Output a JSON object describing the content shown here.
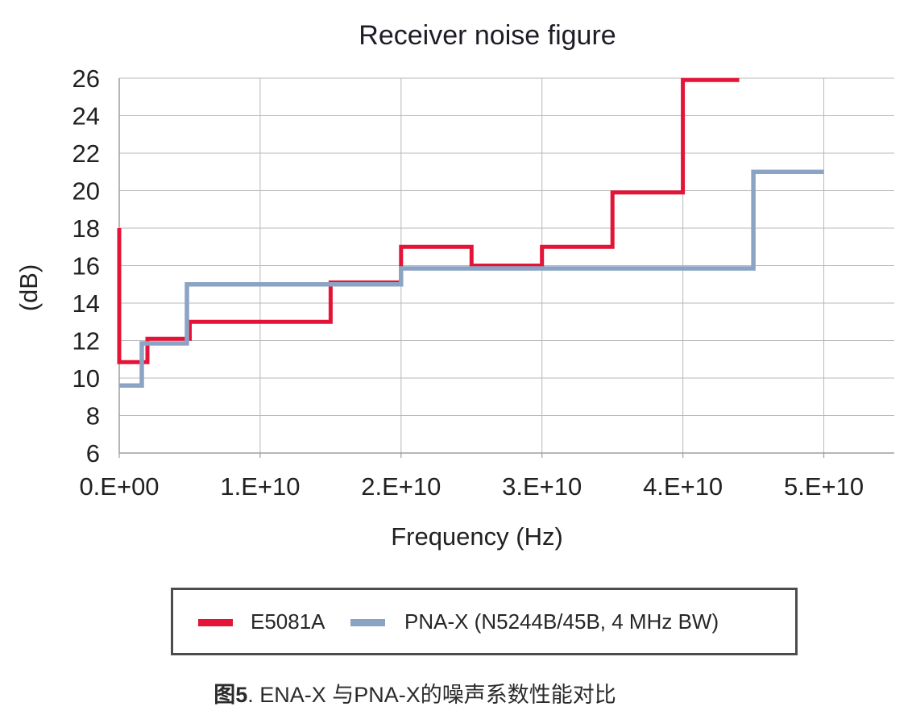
{
  "chart_data": {
    "type": "line",
    "line_style": "step",
    "title": "Receiver noise figure",
    "xlabel": "Frequency (Hz)",
    "ylabel": "(dB)",
    "xlim": [
      0,
      55000000000.0
    ],
    "ylim": [
      6,
      26
    ],
    "x_ticks": [
      0,
      10000000000.0,
      20000000000.0,
      30000000000.0,
      40000000000.0,
      50000000000.0
    ],
    "x_tick_labels": [
      "0.E+00",
      "1.E+10",
      "2.E+10",
      "3.E+10",
      "4.E+10",
      "5.E+10"
    ],
    "y_ticks": [
      6,
      8,
      10,
      12,
      14,
      16,
      18,
      20,
      22,
      24,
      26
    ],
    "grid": true,
    "legend_position": "bottom",
    "colors": {
      "grid": "#b8b8b8",
      "axis": "#9e9e9e",
      "text": "#212121"
    },
    "series": [
      {
        "name": "E5081A",
        "color": "#e31437",
        "points": [
          [
            0,
            18
          ],
          [
            0,
            10.85
          ],
          [
            2000000000.0,
            10.85
          ],
          [
            2000000000.0,
            12.1
          ],
          [
            5000000000.0,
            12.1
          ],
          [
            5000000000.0,
            13
          ],
          [
            15000000000.0,
            13
          ],
          [
            15000000000.0,
            15.1
          ],
          [
            20000000000.0,
            15.1
          ],
          [
            20000000000.0,
            17
          ],
          [
            25000000000.0,
            17
          ],
          [
            25000000000.0,
            16
          ],
          [
            30000000000.0,
            16
          ],
          [
            30000000000.0,
            17
          ],
          [
            35000000000.0,
            17
          ],
          [
            35000000000.0,
            19.9
          ],
          [
            40000000000.0,
            19.9
          ],
          [
            40000000000.0,
            25.9
          ],
          [
            44000000000.0,
            25.9
          ]
        ]
      },
      {
        "name": "PNA-X (N5244B/45B, 4 MHz BW)",
        "color": "#8ca4c4",
        "points": [
          [
            0,
            9.6
          ],
          [
            1600000000.0,
            9.6
          ],
          [
            1600000000.0,
            11.85
          ],
          [
            4800000000.0,
            11.85
          ],
          [
            4800000000.0,
            15
          ],
          [
            20000000000.0,
            15
          ],
          [
            20000000000.0,
            15.85
          ],
          [
            45000000000.0,
            15.85
          ],
          [
            45000000000.0,
            21
          ],
          [
            50000000000.0,
            21
          ]
        ]
      }
    ]
  },
  "legend": {
    "items": [
      {
        "label": "E5081A",
        "color": "#e31437"
      },
      {
        "label": "PNA-X (N5244B/45B, 4 MHz BW)",
        "color": "#8ca4c4"
      }
    ]
  },
  "caption": {
    "prefix": "图5",
    "text": ". ENA-X 与PNA-X的噪声系数性能对比"
  }
}
